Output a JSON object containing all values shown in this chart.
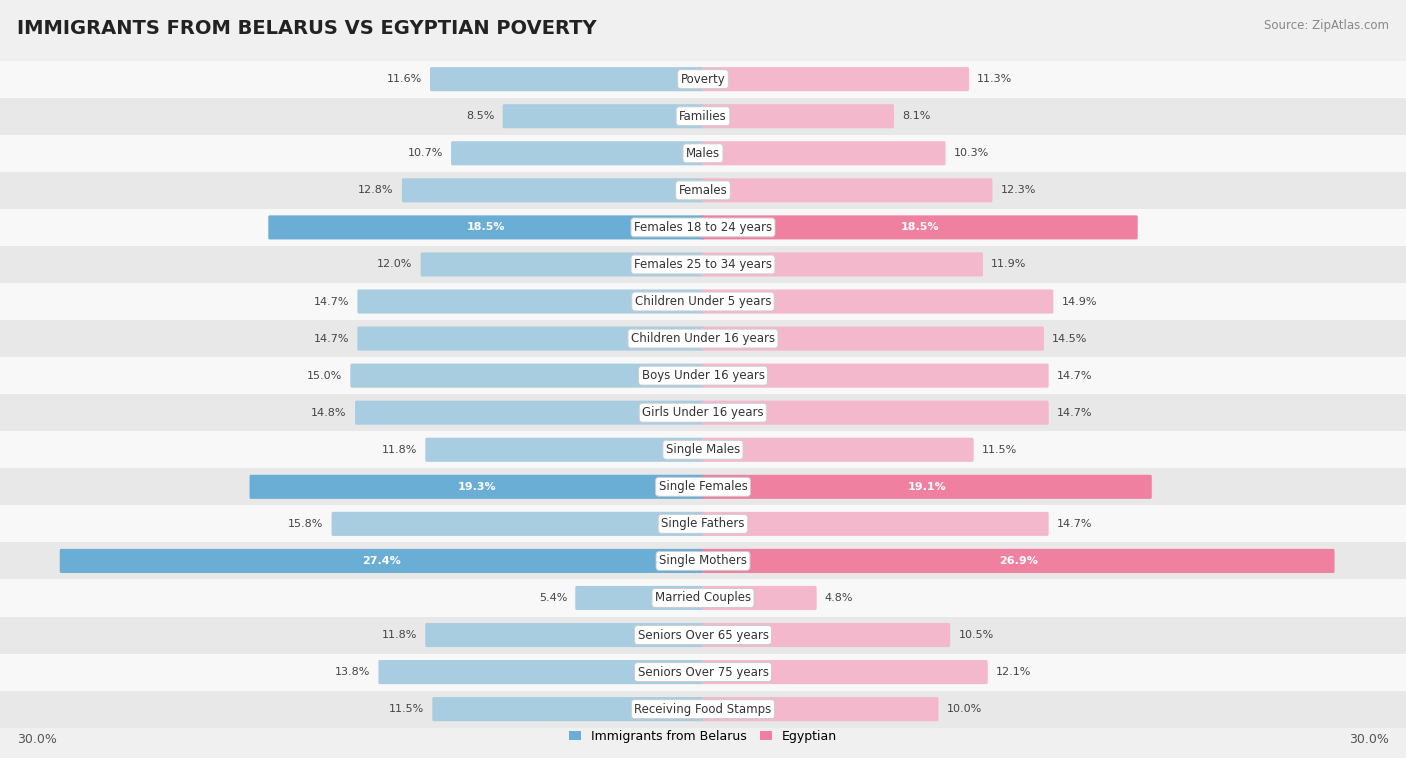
{
  "title": "IMMIGRANTS FROM BELARUS VS EGYPTIAN POVERTY",
  "source": "Source: ZipAtlas.com",
  "categories": [
    "Poverty",
    "Families",
    "Males",
    "Females",
    "Females 18 to 24 years",
    "Females 25 to 34 years",
    "Children Under 5 years",
    "Children Under 16 years",
    "Boys Under 16 years",
    "Girls Under 16 years",
    "Single Males",
    "Single Females",
    "Single Fathers",
    "Single Mothers",
    "Married Couples",
    "Seniors Over 65 years",
    "Seniors Over 75 years",
    "Receiving Food Stamps"
  ],
  "left_values": [
    11.6,
    8.5,
    10.7,
    12.8,
    18.5,
    12.0,
    14.7,
    14.7,
    15.0,
    14.8,
    11.8,
    19.3,
    15.8,
    27.4,
    5.4,
    11.8,
    13.8,
    11.5
  ],
  "right_values": [
    11.3,
    8.1,
    10.3,
    12.3,
    18.5,
    11.9,
    14.9,
    14.5,
    14.7,
    14.7,
    11.5,
    19.1,
    14.7,
    26.9,
    4.8,
    10.5,
    12.1,
    10.0
  ],
  "left_color": "#a8cce0",
  "right_color": "#f4b8cc",
  "highlight_left_color": "#6aadd5",
  "highlight_right_color": "#f080a0",
  "highlight_indices": [
    4,
    11,
    13
  ],
  "bg_color": "#f0f0f0",
  "row_color_light": "#f8f8f8",
  "row_color_dark": "#e8e8e8",
  "axis_max": 30.0,
  "left_label": "Immigrants from Belarus",
  "right_label": "Egyptian",
  "title_fontsize": 14,
  "cat_fontsize": 8.5,
  "value_fontsize": 8.0
}
